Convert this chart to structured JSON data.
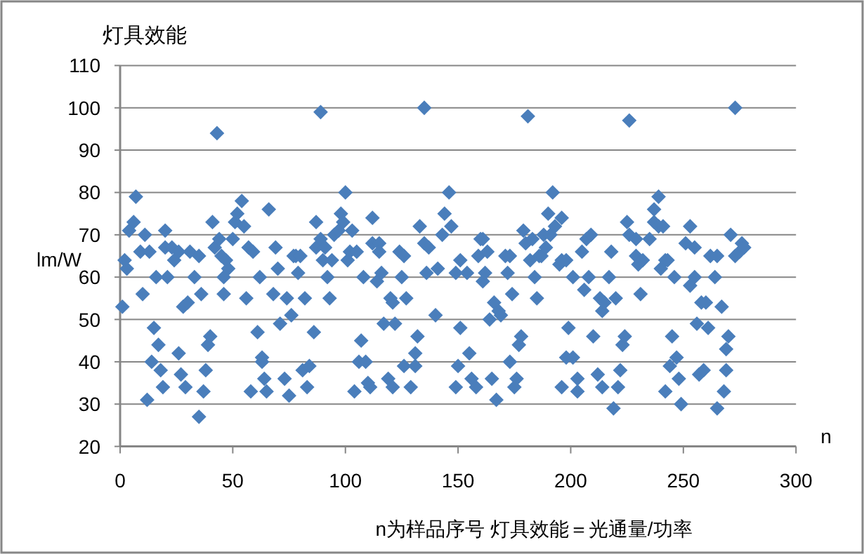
{
  "chart_data": {
    "type": "scatter",
    "title": "灯具效能",
    "ylabel": "lm/W",
    "xlabel": "n",
    "annotations": [
      "n为样品序号  灯具效能＝光通量/功率"
    ],
    "xlim": [
      0,
      300
    ],
    "xticks": [
      0,
      50,
      100,
      150,
      200,
      250,
      300
    ],
    "ylim": [
      20,
      110
    ],
    "yticks": [
      20,
      30,
      40,
      50,
      60,
      70,
      80,
      90,
      100,
      110
    ],
    "grid": "y",
    "marker": "diamond",
    "color": "#4a7ebb",
    "x": [
      1,
      2,
      3,
      4,
      6,
      7,
      10,
      9,
      11,
      13,
      15,
      17,
      12,
      14,
      18,
      19,
      16,
      20,
      21,
      20,
      23,
      24,
      26,
      26,
      27,
      29,
      28,
      30,
      31,
      35,
      33,
      35,
      36,
      37,
      38,
      39,
      40,
      41,
      43,
      42,
      44,
      45,
      46,
      46,
      47,
      48,
      50,
      51,
      52,
      54,
      55,
      56,
      57,
      59,
      58,
      61,
      63,
      63,
      64,
      65,
      62,
      66,
      68,
      69,
      70,
      71,
      73,
      74,
      77,
      76,
      75,
      78,
      80,
      79,
      82,
      86,
      81,
      84,
      83,
      87,
      87,
      89,
      89,
      91,
      90,
      92,
      93,
      94,
      95,
      97,
      98,
      100,
      99,
      101,
      102,
      103,
      105,
      104,
      107,
      106,
      109,
      110,
      111,
      108,
      112,
      112,
      115,
      115,
      114,
      116,
      117,
      120,
      121,
      122,
      124,
      126,
      125,
      119,
      121,
      126,
      127,
      129,
      131,
      131,
      132,
      133,
      135,
      135,
      136,
      137,
      140,
      141,
      143,
      144,
      146,
      147,
      149,
      149,
      150,
      151,
      151,
      154,
      155,
      156,
      158,
      159,
      160,
      161,
      161,
      162,
      163,
      165,
      164,
      166,
      167,
      168,
      169,
      171,
      172,
      173,
      173,
      174,
      175,
      176,
      177,
      178,
      179,
      180,
      181,
      182,
      183,
      184,
      185,
      186,
      187,
      188,
      189,
      190,
      191,
      192,
      193,
      195,
      196,
      196,
      198,
      196,
      198,
      199,
      201,
      201,
      203,
      203,
      205,
      206,
      207,
      208,
      209,
      210,
      212,
      213,
      214,
      214,
      215,
      217,
      218,
      219,
      220,
      221,
      222,
      223,
      224,
      225,
      226,
      226,
      229,
      229,
      230,
      232,
      231,
      235,
      237,
      237,
      239,
      239,
      241,
      240,
      242,
      243,
      242,
      244,
      245,
      246,
      247,
      248,
      249,
      251,
      253,
      253,
      255,
      255,
      256,
      258,
      257,
      259,
      260,
      261,
      262,
      264,
      265,
      265,
      267,
      268,
      269,
      269,
      270,
      271,
      273,
      273,
      275,
      276,
      277
    ],
    "values": [
      53,
      64,
      62,
      71,
      73,
      79,
      56,
      66,
      70,
      66,
      48,
      44,
      31,
      40,
      38,
      34,
      60,
      71,
      60,
      67,
      67,
      64,
      66,
      42,
      37,
      34,
      53,
      54,
      66,
      65,
      60,
      27,
      56,
      33,
      38,
      44,
      46,
      73,
      94,
      67,
      69,
      65,
      60,
      56,
      64,
      62,
      69,
      73,
      75,
      78,
      72,
      55,
      67,
      66,
      33,
      47,
      40,
      41,
      36,
      33,
      60,
      76,
      56,
      67,
      62,
      49,
      36,
      55,
      65,
      51,
      32,
      65,
      65,
      61,
      55,
      47,
      38,
      39,
      34,
      73,
      67,
      99,
      69,
      67,
      64,
      60,
      55,
      64,
      70,
      71,
      75,
      80,
      73,
      64,
      66,
      71,
      66,
      33,
      45,
      40,
      40,
      35,
      34,
      60,
      74,
      68,
      68,
      66,
      59,
      61,
      49,
      55,
      54,
      49,
      66,
      65,
      60,
      36,
      34,
      39,
      55,
      34,
      39,
      42,
      46,
      72,
      68,
      100,
      61,
      67,
      51,
      62,
      70,
      75,
      80,
      72,
      61,
      34,
      39,
      64,
      48,
      61,
      42,
      36,
      34,
      65,
      69,
      59,
      69,
      61,
      66,
      36,
      50,
      54,
      31,
      52,
      51,
      65,
      61,
      65,
      40,
      56,
      34,
      36,
      44,
      46,
      71,
      68,
      98,
      64,
      69,
      60,
      55,
      65,
      65,
      70,
      67,
      75,
      70,
      80,
      72,
      63,
      74,
      64,
      64,
      34,
      41,
      48,
      41,
      60,
      36,
      33,
      66,
      57,
      69,
      60,
      70,
      46,
      37,
      55,
      34,
      52,
      54,
      60,
      66,
      29,
      55,
      34,
      38,
      44,
      46,
      73,
      97,
      70,
      69,
      65,
      63,
      64,
      56,
      69,
      76,
      73,
      79,
      72,
      72,
      62,
      64,
      64,
      33,
      39,
      46,
      60,
      41,
      36,
      30,
      68,
      72,
      58,
      60,
      67,
      49,
      54,
      37,
      38,
      54,
      48,
      65,
      60,
      65,
      29,
      53,
      33,
      38,
      43,
      46,
      70,
      65,
      100,
      66,
      68,
      67
    ]
  }
}
